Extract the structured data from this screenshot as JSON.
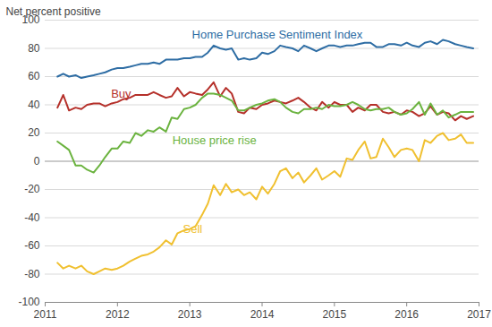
{
  "chart_data": {
    "type": "line",
    "y_label": "Net percent positive",
    "x": [
      2011.17,
      2011.25,
      2011.33,
      2011.42,
      2011.5,
      2011.58,
      2011.67,
      2011.75,
      2011.83,
      2011.92,
      2012,
      2012.08,
      2012.17,
      2012.25,
      2012.33,
      2012.42,
      2012.5,
      2012.58,
      2012.67,
      2012.75,
      2012.83,
      2012.92,
      2013,
      2013.08,
      2013.17,
      2013.25,
      2013.33,
      2013.42,
      2013.5,
      2013.58,
      2013.67,
      2013.75,
      2013.83,
      2013.92,
      2014,
      2014.08,
      2014.17,
      2014.25,
      2014.33,
      2014.42,
      2014.5,
      2014.58,
      2014.67,
      2014.75,
      2014.83,
      2014.92,
      2015,
      2015.08,
      2015.17,
      2015.25,
      2015.33,
      2015.42,
      2015.5,
      2015.58,
      2015.67,
      2015.75,
      2015.83,
      2015.92,
      2016,
      2016.08,
      2016.17,
      2016.25,
      2016.33,
      2016.42,
      2016.5,
      2016.58,
      2016.67,
      2016.75,
      2016.83,
      2016.92
    ],
    "series": [
      {
        "name": "Home Purchase Sentiment Index",
        "color": "#2e6da4",
        "values": [
          60,
          62,
          60,
          61,
          59,
          60,
          61,
          62,
          63,
          65,
          66,
          66,
          67,
          68,
          69,
          69,
          70,
          69,
          72,
          72,
          72,
          73,
          73,
          74,
          74,
          77,
          82,
          80,
          79,
          80,
          72,
          73,
          72,
          73,
          77,
          76,
          78,
          82,
          81,
          80,
          78,
          82,
          80,
          78,
          80,
          82,
          82,
          81,
          82,
          82,
          83,
          84,
          84,
          81,
          81,
          83,
          83,
          82,
          84,
          82,
          81,
          84,
          85,
          83,
          86,
          85,
          83,
          82,
          81,
          80
        ]
      },
      {
        "name": "Buy",
        "color": "#b5302a",
        "values": [
          38,
          47,
          36,
          38,
          37,
          40,
          41,
          41,
          39,
          41,
          42,
          44,
          45,
          47,
          47,
          47,
          49,
          47,
          45,
          46,
          52,
          46,
          49,
          48,
          47,
          51,
          56,
          46,
          52,
          48,
          35,
          34,
          38,
          37,
          40,
          41,
          43,
          42,
          41,
          43,
          45,
          42,
          38,
          36,
          42,
          38,
          42,
          40,
          40,
          35,
          38,
          36,
          40,
          40,
          35,
          34,
          35,
          33,
          36,
          35,
          32,
          34,
          39,
          33,
          35,
          34,
          29,
          32,
          30,
          32
        ]
      },
      {
        "name": "House price rise",
        "color": "#6bb33f",
        "values": [
          14,
          11,
          8,
          -3,
          -3,
          -6,
          -8,
          -3,
          3,
          9,
          9,
          14,
          13,
          20,
          18,
          22,
          21,
          24,
          21,
          31,
          30,
          37,
          38,
          40,
          45,
          48,
          48,
          47,
          45,
          43,
          36,
          36,
          38,
          40,
          41,
          43,
          44,
          42,
          38,
          35,
          34,
          37,
          37,
          38,
          37,
          40,
          39,
          39,
          40,
          42,
          40,
          37,
          36,
          37,
          37,
          38,
          35,
          33,
          34,
          37,
          42,
          33,
          41,
          33,
          36,
          31,
          33,
          35,
          35,
          35
        ]
      },
      {
        "name": "Sell",
        "color": "#f0c030",
        "values": [
          -72,
          -76,
          -74,
          -76,
          -74,
          -78,
          -80,
          -78,
          -76,
          -77,
          -76,
          -74,
          -71,
          -69,
          -67,
          -66,
          -64,
          -61,
          -56,
          -59,
          -51,
          -49,
          -48,
          -46,
          -38,
          -30,
          -17,
          -24,
          -16,
          -22,
          -20,
          -24,
          -22,
          -27,
          -18,
          -23,
          -16,
          -7,
          -5,
          -12,
          -8,
          -15,
          -10,
          -5,
          -13,
          -10,
          -7,
          -11,
          2,
          1,
          8,
          14,
          2,
          3,
          16,
          10,
          3,
          8,
          9,
          8,
          0,
          15,
          13,
          18,
          20,
          15,
          16,
          19,
          13,
          13
        ]
      }
    ],
    "xlim": [
      2011,
      2017
    ],
    "xticks": [
      2011,
      2012,
      2013,
      2014,
      2015,
      2016,
      2017
    ],
    "ylim": [
      -100,
      100
    ],
    "yticks": [
      -100,
      -80,
      -60,
      -40,
      -20,
      0,
      20,
      40,
      60,
      80,
      100
    ],
    "grid": true
  }
}
